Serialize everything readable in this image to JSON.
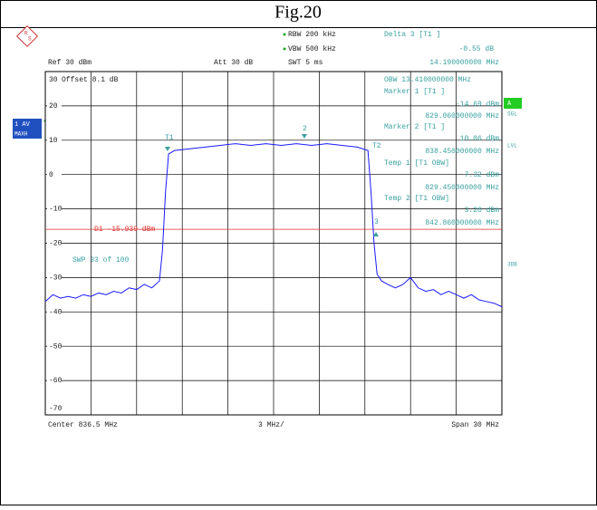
{
  "chart_data": {
    "type": "line",
    "title": "Fig.20",
    "settings": {
      "rbw": "RBW 200 kHz",
      "vbw": "VBW 500 kHz",
      "swt": "SWT 5 ms",
      "ref": "Ref 30 dBm",
      "att": "Att 30 dB",
      "offset": "Offset 8.1 dB",
      "sweep": "SWP 33 of 100",
      "center": "Center 836.5 MHz",
      "division": "3 MHz/",
      "span": "Span 30 MHz"
    },
    "side_labels": {
      "trace": "1 AV",
      "mode": "MAXH",
      "a": "A",
      "sgl": "SGL",
      "lvl": "LVL",
      "db": "3DB"
    },
    "marker_info": [
      "Delta 3 [T1 ]",
      "-0.55 dB",
      "14.190000000 MHz",
      "OBW 13.410000000 MHz",
      "Marker 1 [T1 ]",
      "-14.69 dBm",
      "829.060000000 MHz",
      "Marker 2 [T1 ]",
      "10.06 dBm",
      "838.450000000 MHz",
      "Temp 1 [T1 OBW]",
      "7.32 dBm",
      "829.450000000 MHz",
      "Temp 2 [T1 OBW]",
      "3.20 dBm",
      "842.860000000 MHz"
    ],
    "marker_labels": [
      "T1",
      "2",
      "T2",
      "3"
    ],
    "display_line": {
      "value": -15.939,
      "label": "D1 -15.939 dBm",
      "color": "#e03030"
    },
    "xlim": [
      821.5,
      851.5
    ],
    "ylim": [
      -70,
      30
    ],
    "yticks": [
      30,
      20,
      10,
      0,
      -10,
      -20,
      -30,
      -40,
      -50,
      -60,
      -70
    ],
    "grid": true,
    "series": [
      {
        "color": "#1a1aff",
        "x": [
          821.5,
          822,
          822.5,
          823,
          823.5,
          824,
          824.5,
          825,
          825.5,
          826,
          826.5,
          827,
          827.5,
          828,
          828.5,
          829,
          829.2,
          829.4,
          829.6,
          830,
          831,
          832,
          833,
          834,
          835,
          836,
          837,
          838,
          839,
          840,
          841,
          842,
          842.7,
          842.9,
          843.1,
          843.3,
          843.6,
          844,
          844.5,
          845,
          845.5,
          846,
          846.5,
          847,
          847.5,
          848,
          848.5,
          849,
          849.5,
          850,
          850.5,
          851,
          851.5
        ],
        "values": [
          -37,
          -35,
          -36,
          -35.5,
          -36,
          -35,
          -35.5,
          -34.5,
          -35,
          -34,
          -34.5,
          -33,
          -33.5,
          -32,
          -33,
          -31,
          -22,
          -5,
          6,
          7,
          7.5,
          8,
          8.5,
          9,
          8.5,
          9,
          8.5,
          9,
          8.5,
          9,
          8.5,
          8,
          7,
          -5,
          -20,
          -29,
          -31,
          -32,
          -33,
          -32,
          -30,
          -33,
          -34,
          -33.5,
          -35,
          -34,
          -35,
          -36,
          -35,
          -36.5,
          -37,
          -37.5,
          -38.5
        ]
      }
    ]
  }
}
